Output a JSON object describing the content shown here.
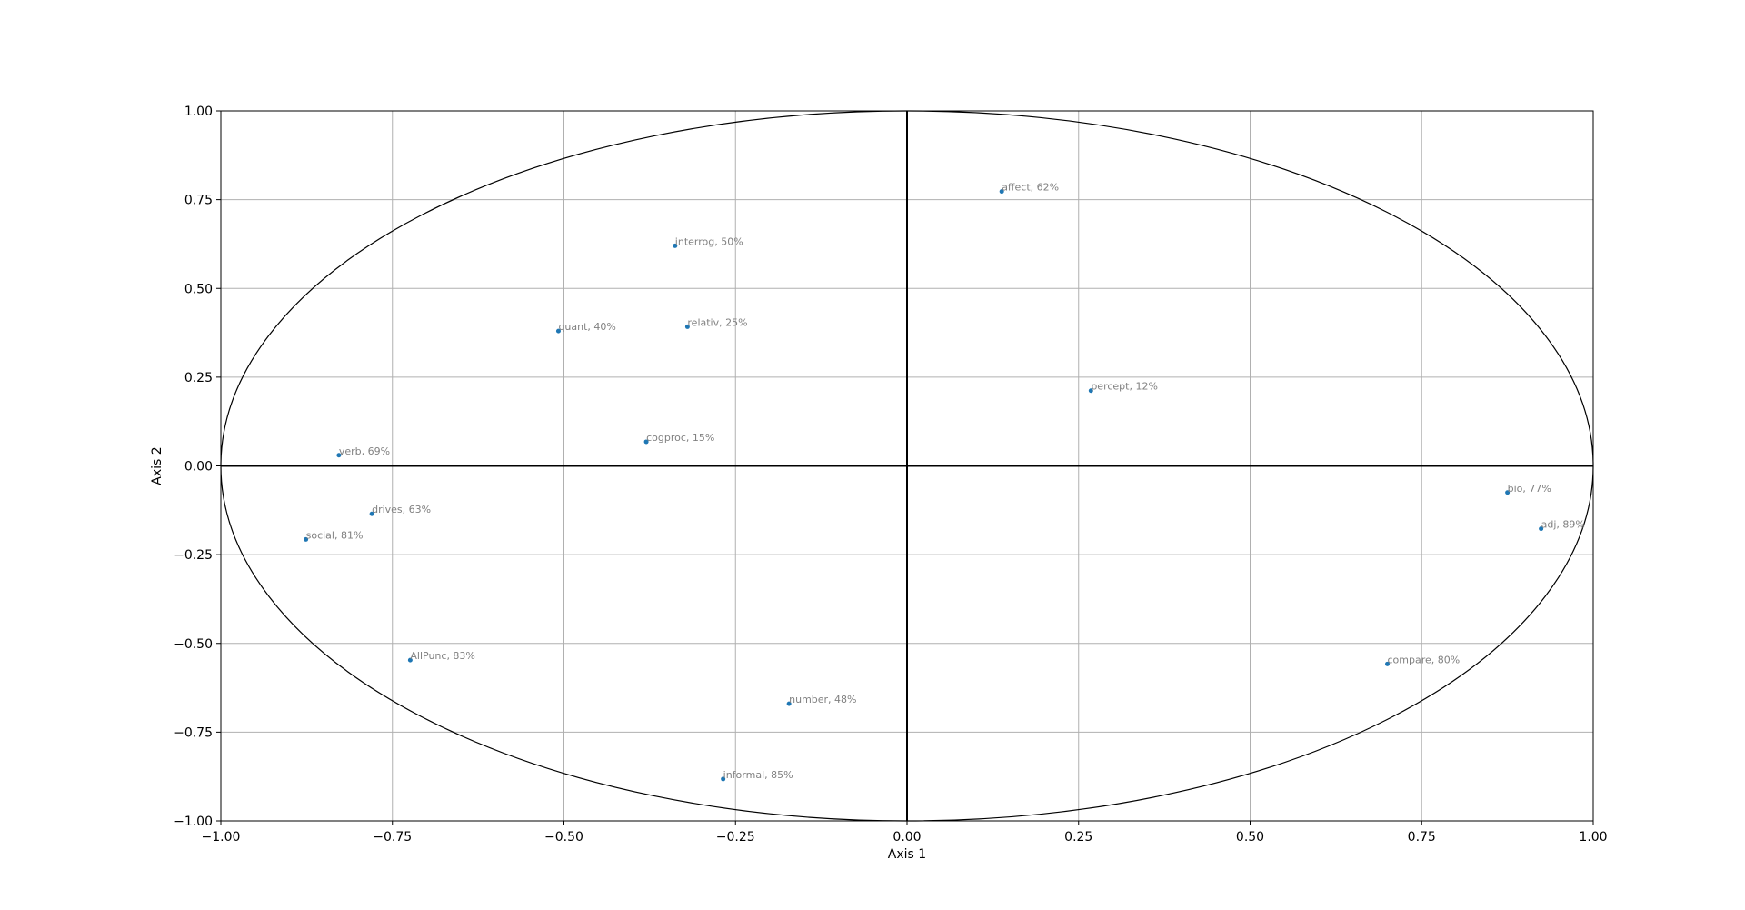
{
  "chart_data": {
    "type": "scatter",
    "title": "",
    "xlabel": "Axis 1",
    "ylabel": "Axis 2",
    "xlim": [
      -1.0,
      1.0
    ],
    "ylim": [
      -1.0,
      1.0
    ],
    "grid": true,
    "unit_circle": true,
    "marker_color": "#1f77b4",
    "label_color": "#808080",
    "x_ticks": [
      -1.0,
      -0.75,
      -0.5,
      -0.25,
      0.0,
      0.25,
      0.5,
      0.75,
      1.0
    ],
    "y_ticks": [
      -1.0,
      -0.75,
      -0.5,
      -0.25,
      0.0,
      0.25,
      0.5,
      0.75,
      1.0
    ],
    "x_tick_labels": [
      "−1.00",
      "−0.75",
      "−0.50",
      "−0.25",
      "0.00",
      "0.25",
      "0.50",
      "0.75",
      "1.00"
    ],
    "y_tick_labels": [
      "−1.00",
      "−0.75",
      "−0.50",
      "−0.25",
      "0.00",
      "0.25",
      "0.50",
      "0.75",
      "1.00"
    ],
    "points": [
      {
        "label": "affect, 62%",
        "x": 0.138,
        "y": 0.773
      },
      {
        "label": "interrog, 50%",
        "x": -0.338,
        "y": 0.62
      },
      {
        "label": "quant, 40%",
        "x": -0.508,
        "y": 0.38
      },
      {
        "label": "relativ, 25%",
        "x": -0.32,
        "y": 0.392
      },
      {
        "label": "percept, 12%",
        "x": 0.268,
        "y": 0.212
      },
      {
        "label": "cogproc, 15%",
        "x": -0.38,
        "y": 0.068
      },
      {
        "label": "verb, 69%",
        "x": -0.828,
        "y": 0.03
      },
      {
        "label": "drives, 63%",
        "x": -0.78,
        "y": -0.135
      },
      {
        "label": "social, 81%",
        "x": -0.876,
        "y": -0.207
      },
      {
        "label": "bio, 77%",
        "x": 0.875,
        "y": -0.075
      },
      {
        "label": "adj, 89%",
        "x": 0.924,
        "y": -0.177
      },
      {
        "label": "AllPunc, 83%",
        "x": -0.724,
        "y": -0.547
      },
      {
        "label": "compare, 80%",
        "x": 0.7,
        "y": -0.558
      },
      {
        "label": "number, 48%",
        "x": -0.172,
        "y": -0.67
      },
      {
        "label": "informal, 85%",
        "x": -0.268,
        "y": -0.882
      }
    ]
  }
}
